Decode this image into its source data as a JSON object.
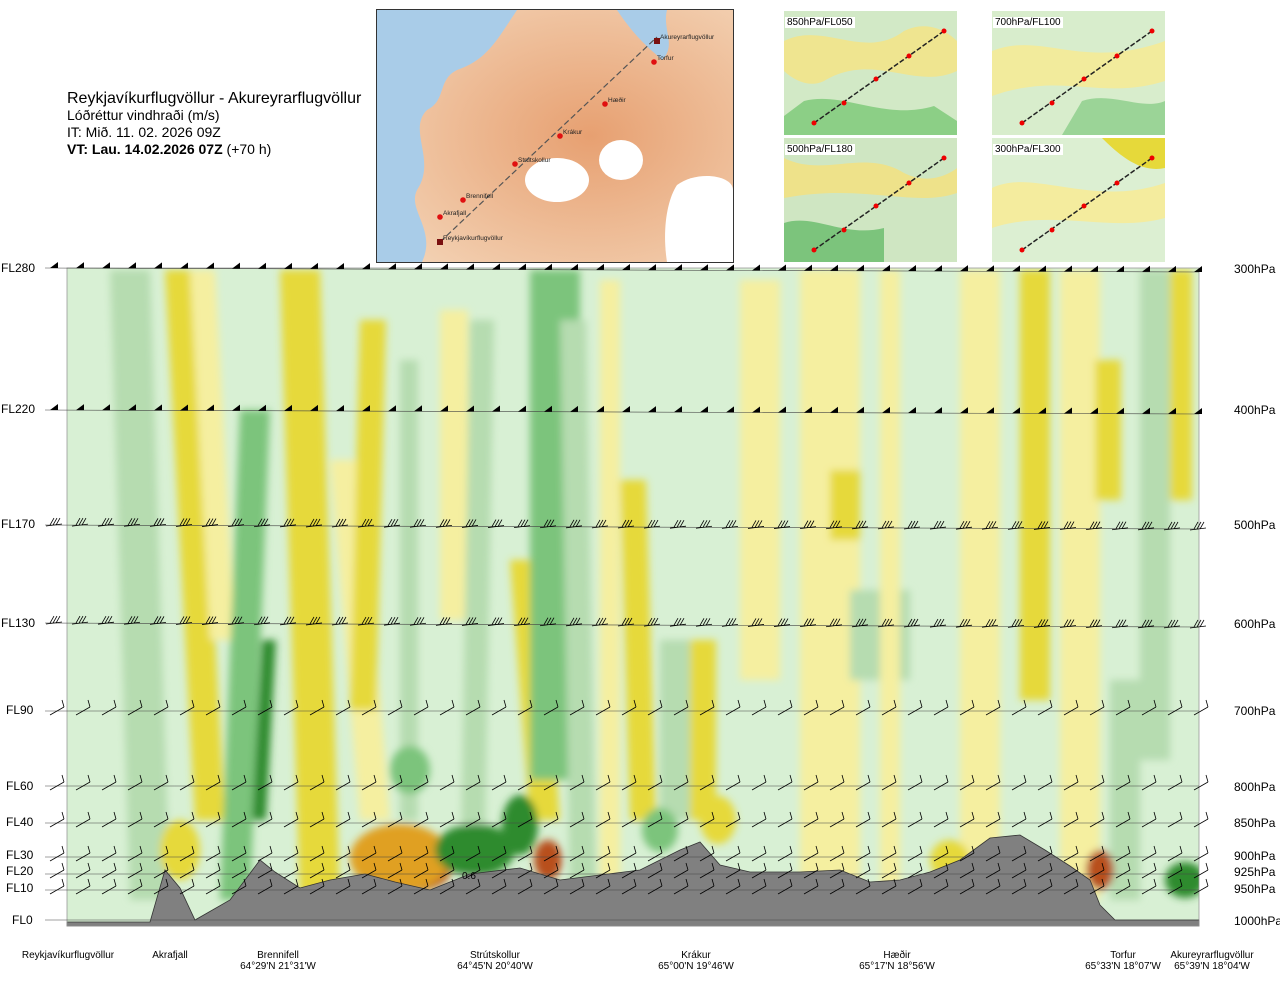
{
  "title": {
    "route": "Reykjavíkurflugvöllur - Akureyrarflugvöllur",
    "parameter": "Lóðréttur vindhraði (m/s)",
    "issue_time": "IT: Mið. 11. 02. 2026 09Z",
    "valid_prefix": "VT: Lau. 14.02.2026 07Z",
    "valid_suffix": "(+70 h)"
  },
  "map": {
    "waypoints": [
      "Akureyrarflugvöllur",
      "Torfur",
      "Hæðir",
      "Krákur",
      "Strútskollur",
      "Brennifell",
      "Akrafjall",
      "Reykjavíkurflugvöllur"
    ]
  },
  "mini_maps": [
    {
      "label": "850hPa/FL050"
    },
    {
      "label": "700hPa/FL100"
    },
    {
      "label": "500hPa/FL180"
    },
    {
      "label": "300hPa/FL300"
    }
  ],
  "levels": [
    {
      "fl": "FL280",
      "hpa": "300hPa"
    },
    {
      "fl": "FL220",
      "hpa": "400hPa"
    },
    {
      "fl": "FL170",
      "hpa": "500hPa"
    },
    {
      "fl": "FL130",
      "hpa": "600hPa"
    },
    {
      "fl": "FL90",
      "hpa": "700hPa"
    },
    {
      "fl": "FL60",
      "hpa": "800hPa"
    },
    {
      "fl": "FL40",
      "hpa": "850hPa"
    },
    {
      "fl": "FL30",
      "hpa": "900hPa"
    },
    {
      "fl": "FL20",
      "hpa": "925hPa"
    },
    {
      "fl": "FL10",
      "hpa": "950hPa"
    },
    {
      "fl": "FL0",
      "hpa": "1000hPa"
    }
  ],
  "stations": [
    {
      "name": "Reykjavíkurflugvöllur",
      "coord": ""
    },
    {
      "name": "Akrafjall",
      "coord": ""
    },
    {
      "name": "Brennifell",
      "coord": "64°29'N 21°31'W"
    },
    {
      "name": "Strútskollur",
      "coord": "64°45'N 20°40'W"
    },
    {
      "name": "Krákur",
      "coord": "65°00'N 19°46'W"
    },
    {
      "name": "Hæðir",
      "coord": "65°17'N 18°56'W"
    },
    {
      "name": "Torfur",
      "coord": "65°33'N 18°07'W"
    },
    {
      "name": "Akureyrarflugvöllur",
      "coord": "65°39'N 18°04'W"
    }
  ],
  "annotation": "0.6",
  "colors": {
    "strong_down": "#2e8b2e",
    "down": "#7cc47c",
    "weak_down": "#b6dcb0",
    "neutral": "#d8f0d4",
    "weak_up": "#f5efa0",
    "up": "#e6d93a",
    "strong_up": "#e0a020",
    "very_strong_up": "#b8501a",
    "terrain": "#808080"
  },
  "chart_data": {
    "type": "heatmap",
    "title": "Lóðréttur vindhraði (m/s)",
    "xlabel": "",
    "ylabel": "",
    "x_stations": [
      "Reykjavíkurflugvöllur",
      "Akrafjall",
      "Brennifell",
      "Strútskollur",
      "Krákur",
      "Hæðir",
      "Torfur",
      "Akureyrarflugvöllur"
    ],
    "y_levels_fl": [
      "FL0",
      "FL10",
      "FL20",
      "FL30",
      "FL40",
      "FL60",
      "FL90",
      "FL130",
      "FL170",
      "FL220",
      "FL280"
    ],
    "y_levels_hpa": [
      "1000hPa",
      "950hPa",
      "925hPa",
      "900hPa",
      "850hPa",
      "800hPa",
      "700hPa",
      "600hPa",
      "500hPa",
      "400hPa",
      "300hPa"
    ],
    "annotations": [
      "0.6"
    ],
    "grid": true
  }
}
